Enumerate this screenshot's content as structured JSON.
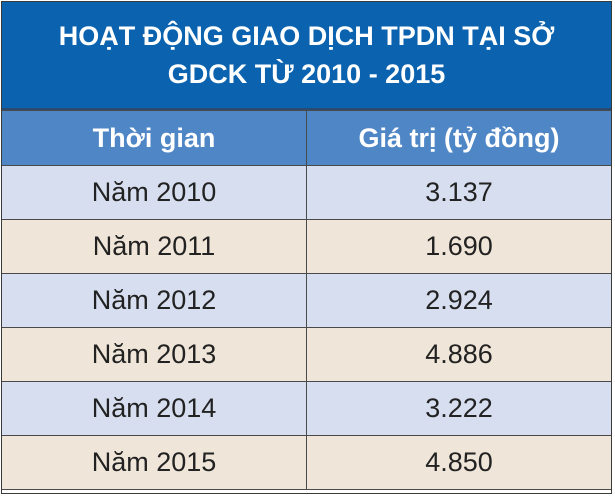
{
  "title": "HOẠT ĐỘNG GIAO DỊCH TPDN TẠI SỞ GDCK TỪ 2010 - 2015",
  "colors": {
    "title_bg": "#0b63b0",
    "header_bg": "#4f86c6",
    "row_odd": "#d6deef",
    "row_even": "#efe5d8"
  },
  "chart_data": {
    "type": "table",
    "title": "HOẠT ĐỘNG GIAO DỊCH TPDN TẠI SỞ GDCK TỪ 2010 - 2015",
    "columns": [
      "Thời gian",
      "Giá trị (tỷ đồng)"
    ],
    "rows": [
      [
        "Năm 2010",
        "3.137"
      ],
      [
        "Năm 2011",
        "1.690"
      ],
      [
        "Năm 2012",
        "2.924"
      ],
      [
        "Năm 2013",
        "4.886"
      ],
      [
        "Năm 2014",
        "3.222"
      ],
      [
        "Năm 2015",
        "4.850"
      ]
    ]
  }
}
